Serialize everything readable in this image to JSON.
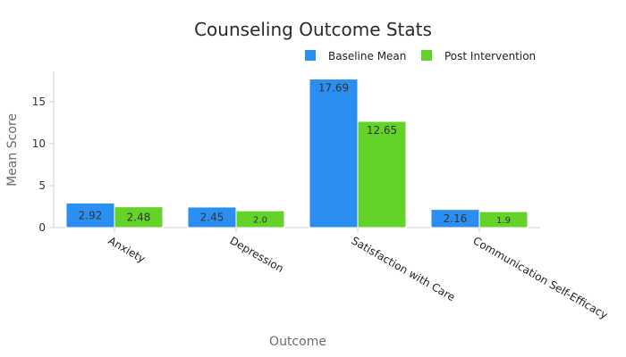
{
  "chart_data": {
    "type": "bar",
    "title": "Counseling Outcome Stats",
    "xlabel": "Outcome",
    "ylabel": "Mean Score",
    "categories": [
      "Anxiety",
      "Depression",
      "Satisfaction with Care",
      "Communication Self-Efficacy"
    ],
    "series": [
      {
        "name": "Baseline Mean",
        "values": [
          2.92,
          2.45,
          17.69,
          2.16
        ],
        "labels": [
          "2.92",
          "2.45",
          "17.69",
          "2.16"
        ],
        "color": "#2b8ff2"
      },
      {
        "name": "Post Intervention",
        "values": [
          2.48,
          2.0,
          12.65,
          1.9
        ],
        "labels": [
          "2.48",
          "2.0",
          "12.65",
          "1.9"
        ],
        "color": "#63d32a"
      }
    ],
    "ylim": [
      0,
      18.6
    ],
    "yticks": [
      0,
      5,
      10,
      15
    ],
    "legend": "top-right",
    "grid": false
  }
}
